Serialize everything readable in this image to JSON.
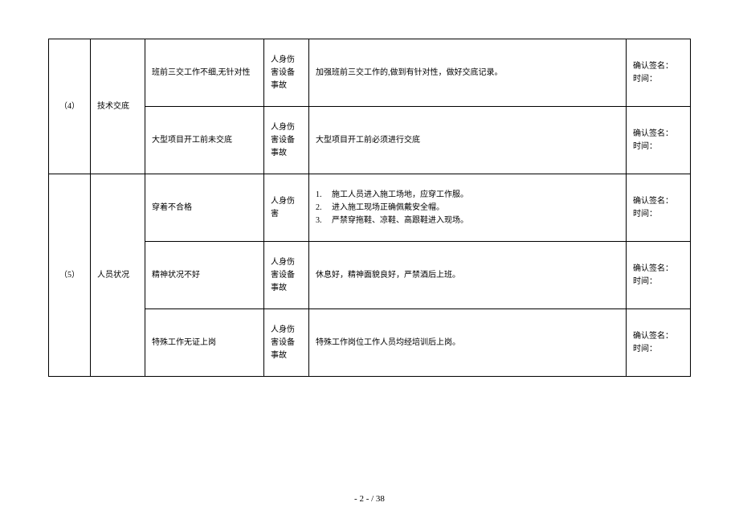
{
  "table": {
    "sections": [
      {
        "num": "（4）",
        "category": "技术交底",
        "rows": [
          {
            "issue": "班前三交工作不细,无针对性",
            "risk": "人身伤害设备事故",
            "measure_text": "加强班前三交工作的,做到有针对性，做好交底记录。",
            "sig1": "确认签名：",
            "sig2": "时间："
          },
          {
            "issue": "大型项目开工前未交底",
            "risk": "人身伤害设备事故",
            "measure_text": "大型项目开工前必须进行交底",
            "sig1": "确认签名：",
            "sig2": "时间："
          }
        ]
      },
      {
        "num": "（5）",
        "category": "人员状况",
        "rows": [
          {
            "issue": "穿着不合格",
            "risk": "人身伤害",
            "measure_list": [
              "施工人员进入施工场地，应穿工作服。",
              "进入施工现场正确佩戴安全帽。",
              "严禁穿拖鞋、凉鞋、高跟鞋进入现场。"
            ],
            "sig1": "确认签名：",
            "sig2": "时间："
          },
          {
            "issue": "精神状况不好",
            "risk": "人身伤害设备事故",
            "measure_text": "休息好，精神面貌良好，严禁酒后上班。",
            "sig1": "确认签名：",
            "sig2": "时间："
          },
          {
            "issue": "特殊工作无证上岗",
            "risk": "人身伤害设备事故",
            "measure_text": "特殊工作岗位工作人员均经培训后上岗。",
            "sig1": "确认签名：",
            "sig2": "时间："
          }
        ]
      }
    ]
  },
  "footer": {
    "page": "- 2 - / 38"
  }
}
